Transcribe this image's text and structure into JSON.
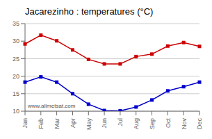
{
  "chart_data": {
    "type": "line",
    "title": "Jacarezinho : temperatures (°C)",
    "categories": [
      "Jan",
      "Feb",
      "Mar",
      "Apr",
      "May",
      "Jun",
      "Jul",
      "Aug",
      "Sep",
      "Oct",
      "Nov",
      "Dec"
    ],
    "series": [
      {
        "color": "#cc0000",
        "marker": "square",
        "values": [
          29.2,
          31.7,
          30.1,
          27.5,
          24.8,
          23.5,
          23.5,
          25.6,
          26.3,
          28.6,
          29.6,
          28.5
        ]
      },
      {
        "color": "#0000cc",
        "marker": "square",
        "values": [
          18.3,
          19.8,
          18.3,
          15.0,
          12.0,
          10.2,
          10.1,
          11.2,
          13.2,
          15.8,
          17.0,
          18.3
        ]
      }
    ],
    "ylim": [
      10,
      35
    ],
    "yticks": [
      10,
      15,
      20,
      25,
      30,
      35
    ],
    "grid": true,
    "annotations": [
      "www.allmetsat.com"
    ]
  }
}
